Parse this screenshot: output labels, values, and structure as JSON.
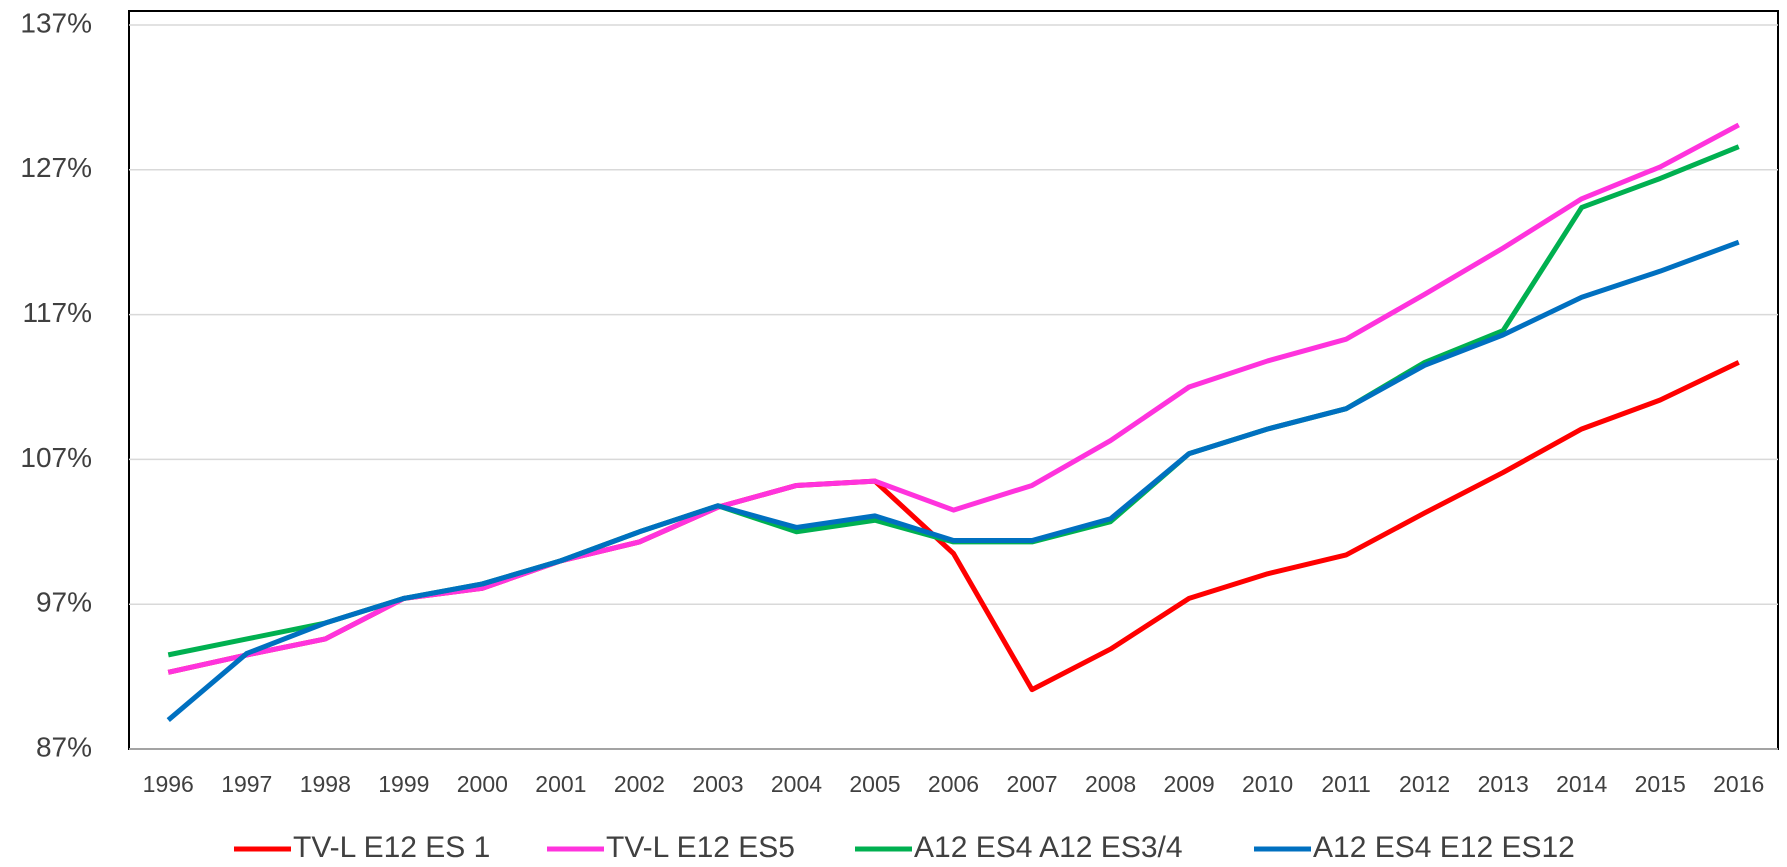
{
  "chart_data": {
    "type": "line",
    "categories": [
      "1996",
      "1997",
      "1998",
      "1999",
      "2000",
      "2001",
      "2002",
      "2003",
      "2004",
      "2005",
      "2006",
      "2007",
      "2008",
      "2009",
      "2010",
      "2011",
      "2012",
      "2013",
      "2014",
      "2015",
      "2016"
    ],
    "series": [
      {
        "name": "TV-L E12 ES 1",
        "color": "#ff0000",
        "values": [
          92.3,
          93.5,
          94.6,
          97.4,
          98.1,
          100.0,
          101.3,
          103.7,
          105.2,
          105.5,
          100.5,
          91.1,
          93.9,
          97.4,
          99.1,
          100.4,
          103.3,
          106.1,
          109.1,
          111.1,
          113.7
        ]
      },
      {
        "name": "TV-L E12 ES5",
        "color": "#ff33dd",
        "values": [
          92.3,
          93.5,
          94.6,
          97.4,
          98.1,
          100.0,
          101.3,
          103.7,
          105.2,
          105.5,
          103.5,
          105.2,
          108.3,
          112.0,
          113.8,
          115.3,
          118.4,
          121.6,
          125.0,
          127.2,
          130.1
        ]
      },
      {
        "name": "A12 ES4 A12 ES3/4",
        "color": "#00b050",
        "values": [
          93.5,
          94.6,
          95.7,
          97.4,
          98.4,
          100.0,
          102.0,
          103.8,
          102.0,
          102.8,
          101.3,
          101.3,
          102.7,
          107.4,
          109.1,
          110.5,
          113.7,
          115.9,
          124.4,
          126.4,
          128.6
        ]
      },
      {
        "name": "A12 ES4 E12 ES12",
        "color": "#0070c0",
        "values": [
          89.0,
          93.6,
          95.7,
          97.4,
          98.4,
          100.0,
          102.0,
          103.8,
          102.3,
          103.1,
          101.4,
          101.4,
          102.9,
          107.4,
          109.1,
          110.5,
          113.5,
          115.6,
          118.2,
          120.0,
          122.0
        ]
      }
    ],
    "ylim": [
      87,
      137
    ],
    "yticks": [
      {
        "value": 87,
        "label": "87%"
      },
      {
        "value": 97,
        "label": "97%"
      },
      {
        "value": 107,
        "label": "107%"
      },
      {
        "value": 117,
        "label": "117%"
      },
      {
        "value": 127,
        "label": "127%"
      },
      {
        "value": 137,
        "label": "137%"
      }
    ],
    "grid": true,
    "legend": "bottom"
  }
}
